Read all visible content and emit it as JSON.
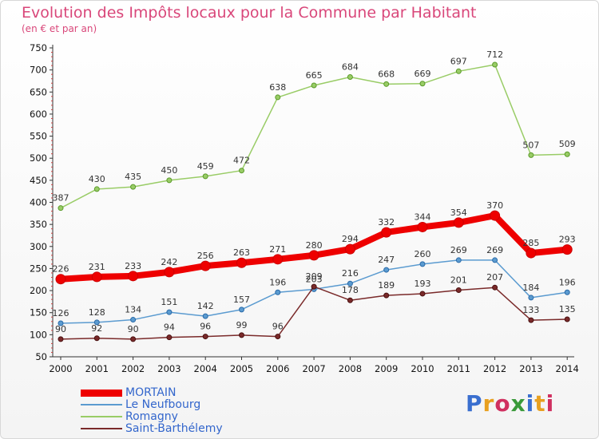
{
  "title": "Evolution des Impôts locaux pour la Commune par Habitant",
  "subtitle": "(en € et par an)",
  "logo": "Proxiti",
  "chart_data": {
    "type": "line",
    "title": "Evolution des Impôts locaux pour la Commune par Habitant",
    "subtitle": "(en € et par an)",
    "xlabel": "",
    "ylabel": "",
    "x": [
      "2000",
      "2001",
      "2002",
      "2003",
      "2004",
      "2005",
      "2006",
      "2007",
      "2008",
      "2009",
      "2010",
      "2011",
      "2012",
      "2013",
      "2014"
    ],
    "ylim": [
      50,
      750
    ],
    "yticks": [
      50,
      100,
      150,
      200,
      250,
      300,
      350,
      400,
      450,
      500,
      550,
      600,
      650,
      700,
      750
    ],
    "grid": false,
    "legend": "bottom-left",
    "series": [
      {
        "name": "MORTAIN",
        "color": "#ee0000",
        "values": [
          226,
          231,
          233,
          242,
          256,
          263,
          271,
          280,
          294,
          332,
          344,
          354,
          370,
          285,
          293
        ]
      },
      {
        "name": "Le Neufbourg",
        "color": "#5b9bd0",
        "values": [
          126,
          128,
          134,
          151,
          142,
          157,
          196,
          203,
          216,
          247,
          260,
          269,
          269,
          184,
          196
        ]
      },
      {
        "name": "Romagny",
        "color": "#99cc66",
        "values": [
          387,
          430,
          435,
          450,
          459,
          472,
          638,
          665,
          684,
          668,
          669,
          697,
          712,
          507,
          509
        ]
      },
      {
        "name": "Saint-Barthélemy",
        "color": "#7a2a2a",
        "values": [
          90,
          92,
          90,
          94,
          96,
          99,
          96,
          209,
          178,
          189,
          193,
          201,
          207,
          133,
          135
        ]
      }
    ]
  }
}
